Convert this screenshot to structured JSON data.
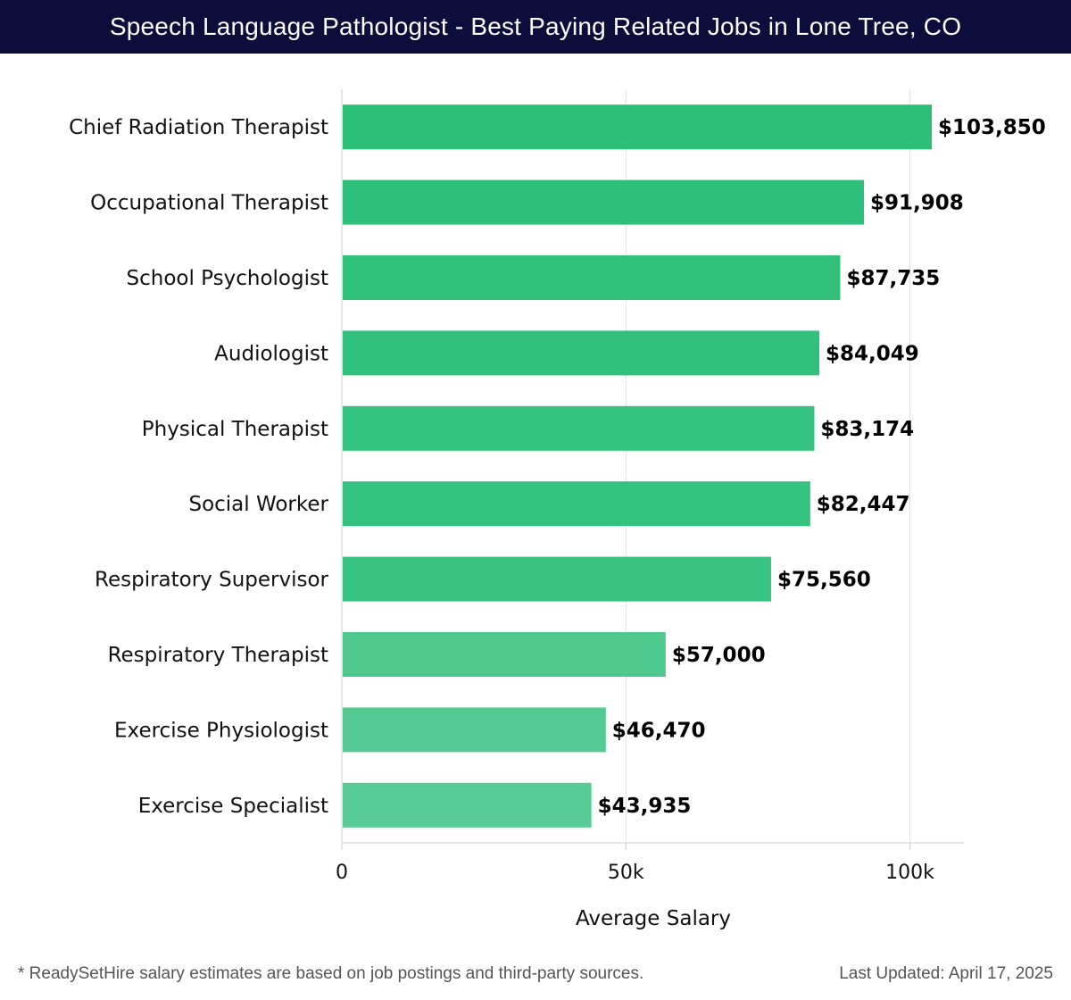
{
  "header": {
    "title": "Speech Language Pathologist - Best Paying Related Jobs in Lone Tree, CO"
  },
  "chart_data": {
    "type": "bar",
    "orientation": "horizontal",
    "categories": [
      "Chief Radiation Therapist",
      "Occupational Therapist",
      "School Psychologist",
      "Audiologist",
      "Physical Therapist",
      "Social Worker",
      "Respiratory Supervisor",
      "Respiratory Therapist",
      "Exercise Physiologist",
      "Exercise Specialist"
    ],
    "values": [
      103850,
      91908,
      87735,
      84049,
      83174,
      82447,
      75560,
      57000,
      46470,
      43935
    ],
    "value_labels": [
      "$103,850",
      "$91,908",
      "$87,735",
      "$84,049",
      "$83,174",
      "$82,447",
      "$75,560",
      "$57,000",
      "$46,470",
      "$43,935"
    ],
    "xlabel": "Average Salary",
    "ylabel": "",
    "xlim": [
      0,
      109500
    ],
    "xticks": [
      0,
      50000,
      100000
    ],
    "xtick_labels": [
      "0",
      "50k",
      "100k"
    ],
    "grid": "vertical",
    "legend": "none",
    "colors": [
      "#2bbf77",
      "#2ec07a",
      "#31c17b",
      "#32c17c",
      "#33c27d",
      "#34c27e",
      "#38c380",
      "#4ec88d",
      "#55cb93",
      "#58cc95"
    ]
  },
  "footer": {
    "note": "* ReadySetHire salary estimates are based on job postings and third-party sources.",
    "updated": "Last Updated: April 17, 2025"
  }
}
